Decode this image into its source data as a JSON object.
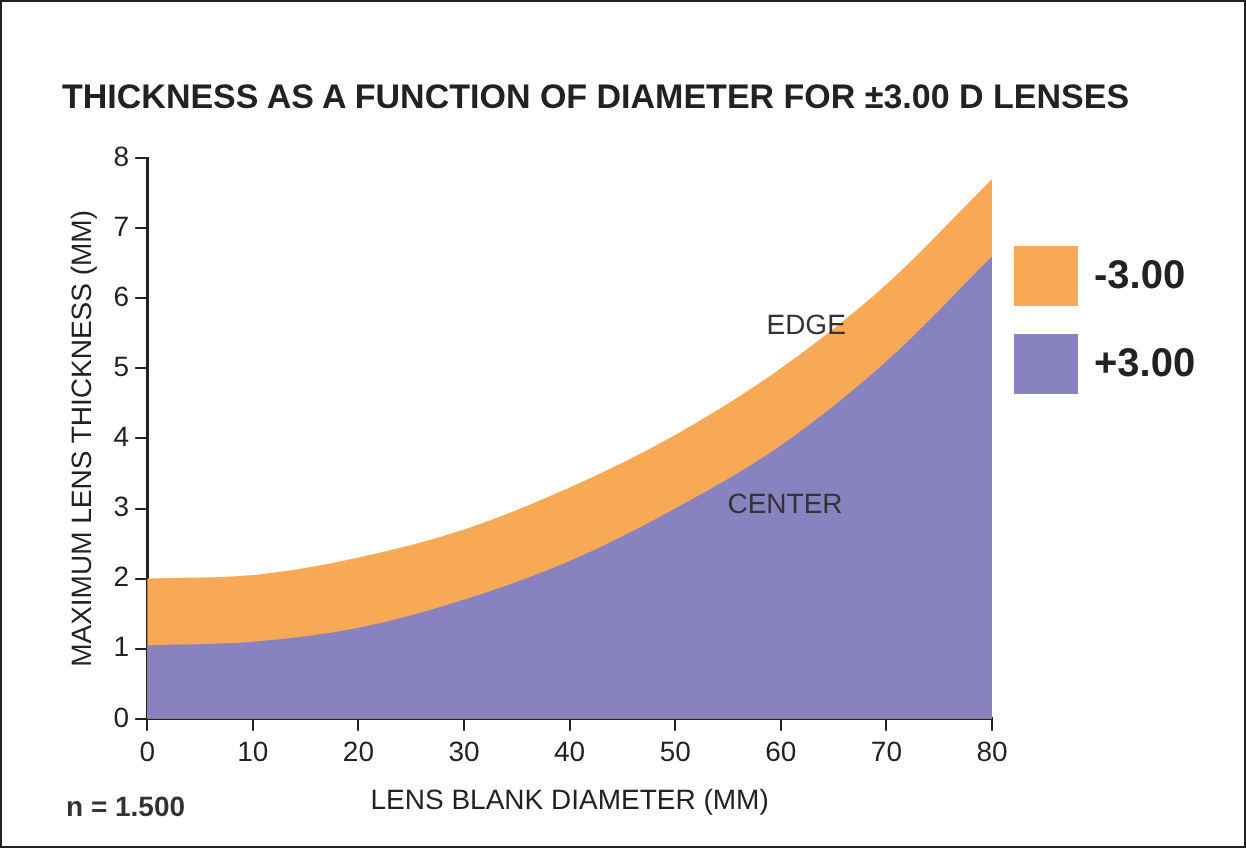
{
  "chart_data": {
    "type": "area",
    "title": "THICKNESS AS A FUNCTION OF DIAMETER FOR ±3.00 D LENSES",
    "xlabel": "LENS BLANK DIAMETER (MM)",
    "ylabel": "MAXIMUM LENS THICKNESS (MM)",
    "x": [
      0,
      10,
      20,
      30,
      40,
      50,
      60,
      70,
      80
    ],
    "series": [
      {
        "name": "-3.00",
        "color": "#f7a955",
        "values": [
          2.0,
          2.05,
          2.3,
          2.7,
          3.3,
          4.05,
          5.0,
          6.2,
          7.7
        ]
      },
      {
        "name": "+3.00",
        "color": "#8882c0",
        "values": [
          1.05,
          1.1,
          1.3,
          1.7,
          2.25,
          3.0,
          3.9,
          5.1,
          6.6
        ]
      }
    ],
    "xlim": [
      0,
      80
    ],
    "xticks": [
      0,
      10,
      20,
      30,
      40,
      50,
      60,
      70,
      80
    ],
    "ylim": [
      0,
      8
    ],
    "yticks": [
      0,
      1,
      2,
      3,
      4,
      5,
      6,
      7,
      8
    ],
    "grid": false,
    "legend": "right",
    "annotations": [
      "EDGE",
      "CENTER",
      "n = 1.500"
    ]
  }
}
